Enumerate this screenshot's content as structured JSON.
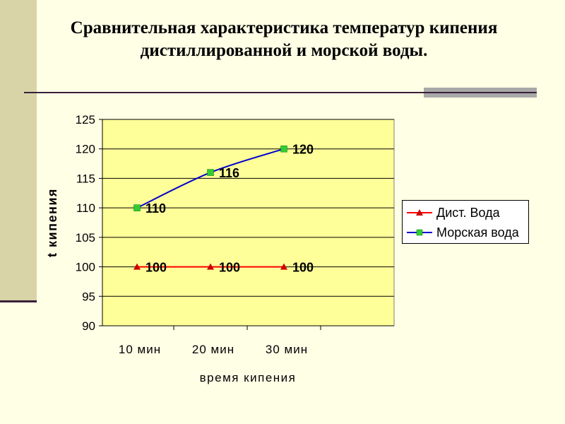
{
  "slide": {
    "title_line1": "Сравнительная характеристика температур кипения",
    "title_line2": "дистиллированной и морской воды."
  },
  "chart_data": {
    "type": "line",
    "categories": [
      "10 мин",
      "20 мин",
      "30 мин"
    ],
    "series": [
      {
        "name": "Дист. Вода",
        "values": [
          100,
          100,
          100
        ],
        "color": "#FF0000",
        "marker": "triangle",
        "marker_color": "#CC0000"
      },
      {
        "name": "Морская вода",
        "values": [
          110,
          116,
          120
        ],
        "color": "#0000CC",
        "marker": "square",
        "marker_color": "#33CC33"
      }
    ],
    "xlabel": "время кипения",
    "ylabel": "t кипения",
    "ylim": [
      90,
      125
    ],
    "yticks": [
      90,
      95,
      100,
      105,
      110,
      115,
      120,
      125
    ],
    "grid": true,
    "data_labels": true,
    "legend_position": "right",
    "plot_background": "#FFFF99"
  }
}
